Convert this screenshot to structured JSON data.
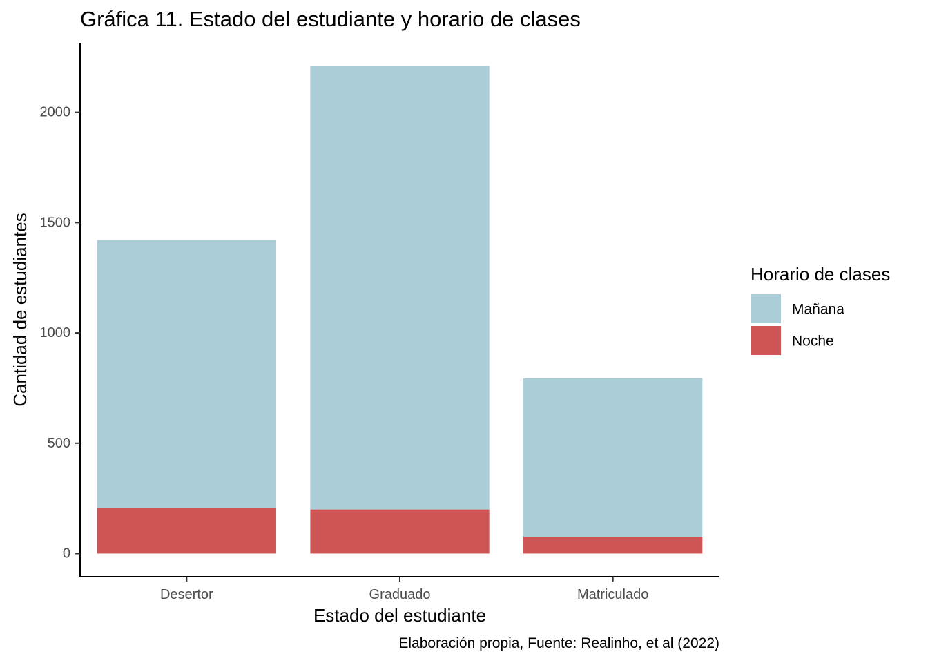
{
  "chart_data": {
    "type": "bar",
    "stacked": true,
    "title": "Gráfica 11. Estado del estudiante y horario de clases",
    "xlabel": "Estado del estudiante",
    "ylabel": "Cantidad de estudiantes",
    "caption": "Elaboración propia, Fuente: Realinho, et al (2022)",
    "categories": [
      "Desertor",
      "Graduado",
      "Matriculado"
    ],
    "series": [
      {
        "name": "Noche",
        "values": [
          205,
          200,
          76
        ],
        "color": "#CD5555"
      },
      {
        "name": "Mañana",
        "values": [
          1216,
          2009,
          718
        ],
        "color": "#AACDD7"
      }
    ],
    "ylim": [
      -105,
      2315
    ],
    "yticks": [
      0,
      500,
      1000,
      1500,
      2000
    ],
    "ytick_labels": [
      "0",
      "500",
      "1000",
      "1500",
      "2000"
    ],
    "grid": false,
    "legend": {
      "title": "Horario de clases",
      "position": "right",
      "entries": [
        {
          "label": "Mañana",
          "color": "#AACDD7"
        },
        {
          "label": "Noche",
          "color": "#CD5555"
        }
      ]
    }
  }
}
